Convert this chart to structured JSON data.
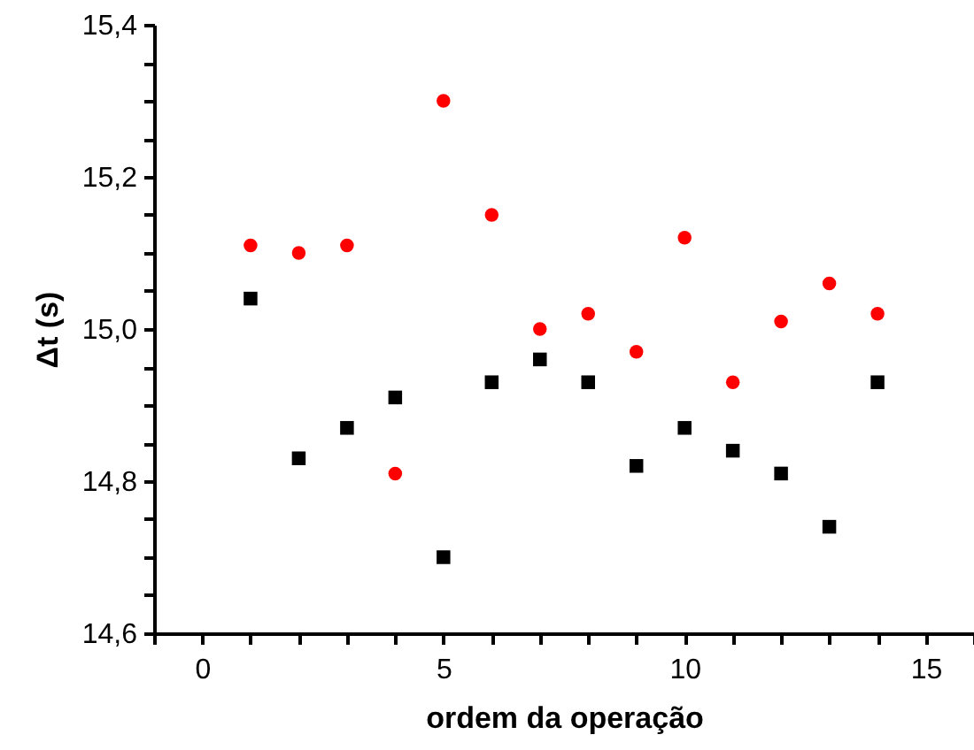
{
  "chart_data": {
    "type": "scatter",
    "xlabel": "ordem da operação",
    "ylabel": "Δt (s)",
    "x": [
      1,
      2,
      3,
      4,
      5,
      6,
      7,
      8,
      9,
      10,
      11,
      12,
      13,
      14
    ],
    "series": [
      {
        "color": "#ff0000",
        "marker": "circle",
        "values": [
          15.11,
          15.1,
          15.11,
          14.81,
          15.3,
          15.15,
          15.0,
          15.02,
          14.97,
          15.12,
          14.93,
          15.01,
          15.06,
          15.02
        ]
      },
      {
        "color": "#000000",
        "marker": "square",
        "values": [
          15.04,
          14.83,
          14.87,
          14.91,
          14.7,
          14.93,
          14.96,
          14.93,
          14.82,
          14.87,
          14.84,
          14.81,
          14.74,
          14.93
        ]
      }
    ],
    "xlim": [
      -1,
      16
    ],
    "xticks": [
      {
        "value": -1,
        "label": null
      },
      0,
      {
        "value": 1,
        "label": null
      },
      {
        "value": 2,
        "label": null
      },
      {
        "value": 3,
        "label": null
      },
      {
        "value": 4,
        "label": null
      },
      5,
      {
        "value": 6,
        "label": null
      },
      {
        "value": 7,
        "label": null
      },
      {
        "value": 8,
        "label": null
      },
      {
        "value": 9,
        "label": null
      },
      10,
      {
        "value": 11,
        "label": null
      },
      {
        "value": 12,
        "label": null
      },
      {
        "value": 13,
        "label": null
      },
      {
        "value": 14,
        "label": null
      },
      15,
      {
        "value": 16,
        "label": null
      }
    ],
    "ylim": [
      14.6,
      15.4
    ],
    "yticks": [
      {
        "value": 14.6,
        "label": "14,6"
      },
      {
        "value": 14.65,
        "label": null
      },
      {
        "value": 14.7,
        "label": null
      },
      {
        "value": 14.75,
        "label": null
      },
      {
        "value": 14.8,
        "label": "14,8"
      },
      {
        "value": 14.85,
        "label": null
      },
      {
        "value": 14.9,
        "label": null
      },
      {
        "value": 14.95,
        "label": null
      },
      {
        "value": 15.0,
        "label": "15,0"
      },
      {
        "value": 15.05,
        "label": null
      },
      {
        "value": 15.1,
        "label": null
      },
      {
        "value": 15.15,
        "label": null
      },
      {
        "value": 15.2,
        "label": "15,2"
      },
      {
        "value": 15.25,
        "label": null
      },
      {
        "value": 15.3,
        "label": null
      },
      {
        "value": 15.35,
        "label": null
      },
      {
        "value": 15.4,
        "label": "15,4"
      }
    ],
    "grid": false
  }
}
